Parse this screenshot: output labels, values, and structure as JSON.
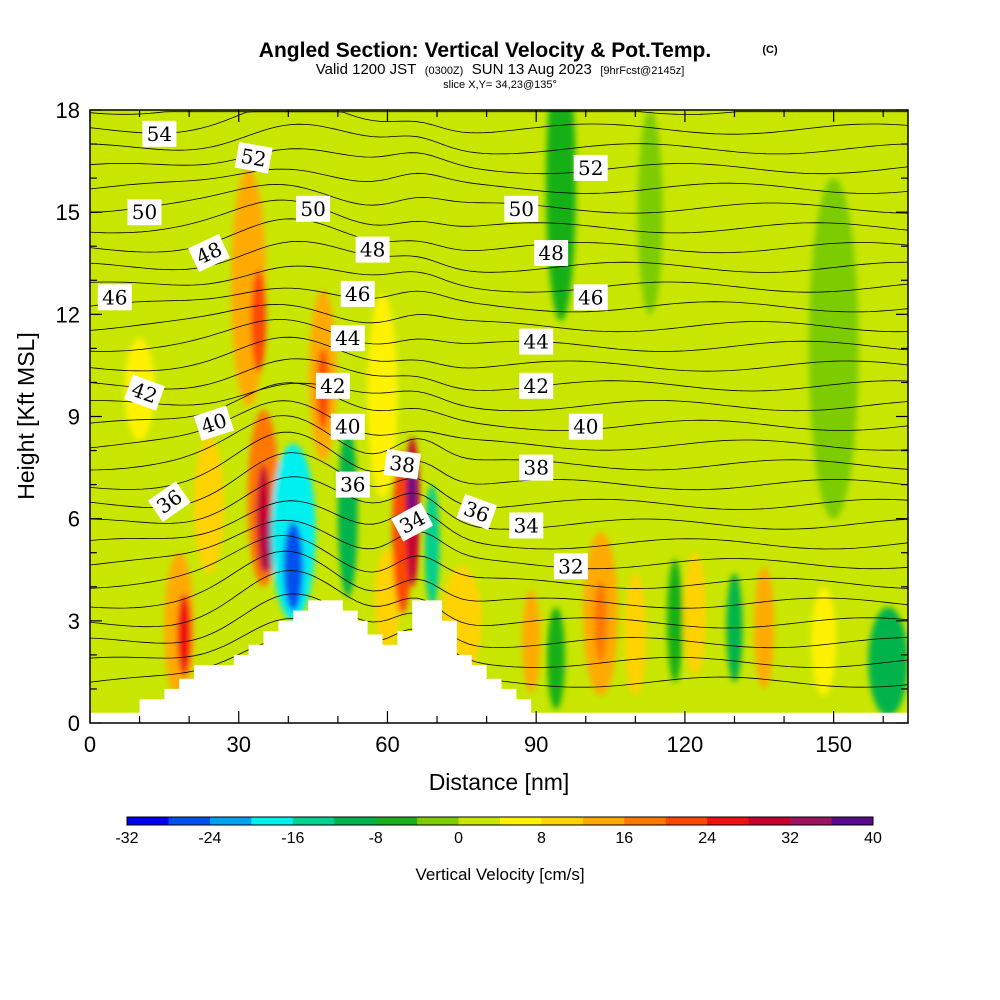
{
  "header": {
    "title": "Angled Section: Vertical Velocity & Pot.Temp.",
    "title_mark": "(C)",
    "subtitle_a": "Valid 1200 JST",
    "subtitle_b": "(0300Z)",
    "subtitle_c": "SUN 13 Aug 2023",
    "subtitle_d": "[9hrFcst@2145z]",
    "slice": "slice X,Y= 34,23@135°"
  },
  "colors": {
    "background_field": "#c8e600",
    "terrain": "#ffffff",
    "contour": "#000000"
  },
  "chart_data": {
    "type": "heatmap",
    "xlabel": "Distance [nm]",
    "ylabel": "Height [Kft MSL]",
    "xlim": [
      0,
      165
    ],
    "ylim": [
      0,
      18
    ],
    "xticks": [
      0,
      30,
      60,
      90,
      120,
      150
    ],
    "yticks": [
      0,
      3,
      6,
      9,
      12,
      15,
      18
    ],
    "colorbar": {
      "label": "Vertical Velocity [cm/s]",
      "min": -32,
      "max": 40,
      "step": 4,
      "tick_labels": [
        -32,
        -24,
        -16,
        -8,
        0,
        8,
        16,
        24,
        32,
        40
      ],
      "colors": [
        "#0000f0",
        "#0050f0",
        "#00a0f0",
        "#00f0f0",
        "#00d090",
        "#00b44c",
        "#18b018",
        "#7ccc00",
        "#c8e600",
        "#fff200",
        "#ffd200",
        "#ffaa00",
        "#ff7800",
        "#ff4600",
        "#f01010",
        "#c80030",
        "#9c1460",
        "#5a0a8c"
      ]
    },
    "terrain": [
      [
        0,
        0.3
      ],
      [
        10,
        0.3
      ],
      [
        10,
        0.7
      ],
      [
        15,
        0.7
      ],
      [
        15,
        1.0
      ],
      [
        18,
        1.0
      ],
      [
        18,
        1.3
      ],
      [
        21,
        1.3
      ],
      [
        21,
        1.7
      ],
      [
        29,
        1.7
      ],
      [
        29,
        2.0
      ],
      [
        32,
        2.0
      ],
      [
        32,
        2.3
      ],
      [
        35,
        2.3
      ],
      [
        35,
        2.7
      ],
      [
        38,
        2.7
      ],
      [
        38,
        3.0
      ],
      [
        41,
        3.0
      ],
      [
        41,
        3.3
      ],
      [
        44,
        3.3
      ],
      [
        44,
        3.6
      ],
      [
        51,
        3.6
      ],
      [
        51,
        3.3
      ],
      [
        54,
        3.3
      ],
      [
        54,
        3.0
      ],
      [
        56,
        3.0
      ],
      [
        56,
        2.6
      ],
      [
        59,
        2.6
      ],
      [
        59,
        2.3
      ],
      [
        62,
        2.3
      ],
      [
        62,
        2.7
      ],
      [
        65,
        2.7
      ],
      [
        65,
        3.6
      ],
      [
        71,
        3.6
      ],
      [
        71,
        3.0
      ],
      [
        74,
        3.0
      ],
      [
        74,
        2.0
      ],
      [
        77,
        2.0
      ],
      [
        77,
        1.7
      ],
      [
        80,
        1.7
      ],
      [
        80,
        1.3
      ],
      [
        83,
        1.3
      ],
      [
        83,
        1.0
      ],
      [
        86,
        1.0
      ],
      [
        86,
        0.7
      ],
      [
        89,
        0.7
      ],
      [
        89,
        0.3
      ],
      [
        165,
        0.3
      ]
    ],
    "cells": [
      {
        "x": 18,
        "y": 2.8,
        "rx": 3,
        "ry": 2.2,
        "v": 14
      },
      {
        "x": 19,
        "y": 2.6,
        "rx": 1.4,
        "ry": 1.2,
        "v": 24
      },
      {
        "x": 24,
        "y": 6.4,
        "rx": 3,
        "ry": 2.0,
        "v": 10
      },
      {
        "x": 32,
        "y": 12.8,
        "rx": 3.5,
        "ry": 3.5,
        "v": 12
      },
      {
        "x": 34,
        "y": 11.8,
        "rx": 1.5,
        "ry": 1.5,
        "v": 22
      },
      {
        "x": 35,
        "y": 6.6,
        "rx": 3.2,
        "ry": 2.6,
        "v": 16
      },
      {
        "x": 35,
        "y": 6.0,
        "rx": 1.5,
        "ry": 1.6,
        "v": 28
      },
      {
        "x": 36,
        "y": 5.2,
        "rx": 0.8,
        "ry": 0.8,
        "v": 33
      },
      {
        "x": 41,
        "y": 5.6,
        "rx": 4.5,
        "ry": 2.6,
        "v": -18
      },
      {
        "x": 41,
        "y": 4.6,
        "rx": 2,
        "ry": 1.3,
        "v": -28
      },
      {
        "x": 47,
        "y": 10.2,
        "rx": 2.8,
        "ry": 2.5,
        "v": 14
      },
      {
        "x": 47,
        "y": 9.8,
        "rx": 1.2,
        "ry": 1.2,
        "v": 22
      },
      {
        "x": 52,
        "y": 6.2,
        "rx": 2,
        "ry": 2.5,
        "v": -10
      },
      {
        "x": 59,
        "y": 9.6,
        "rx": 3,
        "ry": 3,
        "v": 6
      },
      {
        "x": 60,
        "y": 3.6,
        "rx": 2.5,
        "ry": 1.5,
        "v": 8
      },
      {
        "x": 63,
        "y": 5.6,
        "rx": 2,
        "ry": 2.4,
        "v": 22
      },
      {
        "x": 65,
        "y": 6.2,
        "rx": 1.5,
        "ry": 2.2,
        "v": 30
      },
      {
        "x": 65,
        "y": 6.8,
        "rx": 0.8,
        "ry": 0.9,
        "v": 36
      },
      {
        "x": 69,
        "y": 5.2,
        "rx": 1.5,
        "ry": 1.8,
        "v": -14
      },
      {
        "x": 75,
        "y": 3.0,
        "rx": 4,
        "ry": 1.6,
        "v": 8
      },
      {
        "x": 89,
        "y": 2.4,
        "rx": 1.8,
        "ry": 1.5,
        "v": 14
      },
      {
        "x": 94,
        "y": 1.9,
        "rx": 1.8,
        "ry": 1.5,
        "v": -6
      },
      {
        "x": 103,
        "y": 3.2,
        "rx": 3.5,
        "ry": 2.4,
        "v": 12
      },
      {
        "x": 103,
        "y": 3.0,
        "rx": 1.3,
        "ry": 1.2,
        "v": 18
      },
      {
        "x": 110,
        "y": 2.6,
        "rx": 2.2,
        "ry": 1.8,
        "v": 8
      },
      {
        "x": 118,
        "y": 3.0,
        "rx": 1.6,
        "ry": 1.8,
        "v": -6
      },
      {
        "x": 122,
        "y": 3.2,
        "rx": 2.2,
        "ry": 1.8,
        "v": 8
      },
      {
        "x": 130,
        "y": 2.8,
        "rx": 1.6,
        "ry": 1.6,
        "v": -12
      },
      {
        "x": 136,
        "y": 2.8,
        "rx": 2.0,
        "ry": 1.8,
        "v": 12
      },
      {
        "x": 148,
        "y": 2.4,
        "rx": 2.5,
        "ry": 1.6,
        "v": 6
      },
      {
        "x": 161,
        "y": 1.8,
        "rx": 4,
        "ry": 1.6,
        "v": -10
      },
      {
        "x": 10,
        "y": 9.8,
        "rx": 3,
        "ry": 1.5,
        "v": 6
      },
      {
        "x": 95,
        "y": 15.8,
        "rx": 3,
        "ry": 4,
        "v": -6
      },
      {
        "x": 113,
        "y": 15,
        "rx": 2.5,
        "ry": 3,
        "v": -4
      },
      {
        "x": 150,
        "y": 11,
        "rx": 5,
        "ry": 5,
        "v": -4
      }
    ],
    "contour_labels": [
      {
        "x": 14,
        "y": 17.3,
        "text": "54",
        "rot": 0
      },
      {
        "x": 33,
        "y": 16.6,
        "text": "52",
        "rot": 10
      },
      {
        "x": 101,
        "y": 16.3,
        "text": "52",
        "rot": 0
      },
      {
        "x": 11,
        "y": 15.0,
        "text": "50",
        "rot": 0
      },
      {
        "x": 45,
        "y": 15.1,
        "text": "50",
        "rot": 0
      },
      {
        "x": 87,
        "y": 15.1,
        "text": "50",
        "rot": 0
      },
      {
        "x": 24,
        "y": 13.8,
        "text": "48",
        "rot": -25
      },
      {
        "x": 57,
        "y": 13.9,
        "text": "48",
        "rot": 0
      },
      {
        "x": 93,
        "y": 13.8,
        "text": "48",
        "rot": 0
      },
      {
        "x": 5,
        "y": 12.5,
        "text": "46",
        "rot": 0
      },
      {
        "x": 54,
        "y": 12.6,
        "text": "46",
        "rot": 0
      },
      {
        "x": 101,
        "y": 12.5,
        "text": "46",
        "rot": 0
      },
      {
        "x": 52,
        "y": 11.3,
        "text": "44",
        "rot": 0
      },
      {
        "x": 90,
        "y": 11.2,
        "text": "44",
        "rot": 0
      },
      {
        "x": 11,
        "y": 9.7,
        "text": "42",
        "rot": 20
      },
      {
        "x": 49,
        "y": 9.9,
        "text": "42",
        "rot": 0
      },
      {
        "x": 90,
        "y": 9.9,
        "text": "42",
        "rot": 0
      },
      {
        "x": 25,
        "y": 8.8,
        "text": "40",
        "rot": -18
      },
      {
        "x": 52,
        "y": 8.7,
        "text": "40",
        "rot": 0
      },
      {
        "x": 100,
        "y": 8.7,
        "text": "40",
        "rot": 0
      },
      {
        "x": 63,
        "y": 7.6,
        "text": "38",
        "rot": 8
      },
      {
        "x": 90,
        "y": 7.5,
        "text": "38",
        "rot": 0
      },
      {
        "x": 16,
        "y": 6.5,
        "text": "36",
        "rot": -35
      },
      {
        "x": 53,
        "y": 7.0,
        "text": "36",
        "rot": 0
      },
      {
        "x": 78,
        "y": 6.2,
        "text": "36",
        "rot": 20
      },
      {
        "x": 65,
        "y": 5.9,
        "text": "34",
        "rot": -28
      },
      {
        "x": 88,
        "y": 5.8,
        "text": "34",
        "rot": 0
      },
      {
        "x": 97,
        "y": 4.6,
        "text": "32",
        "rot": 0
      }
    ]
  }
}
